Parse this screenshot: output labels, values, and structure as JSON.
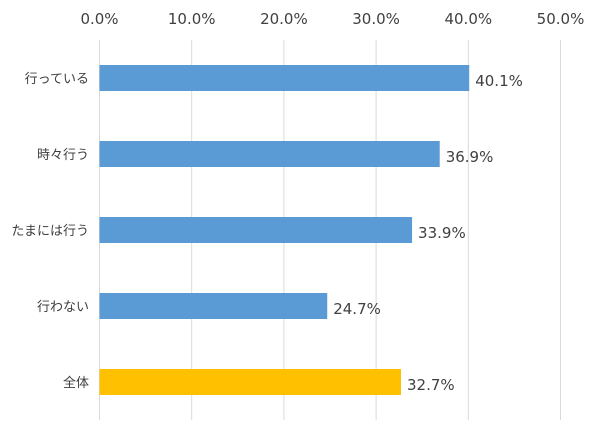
{
  "chart_data": {
    "type": "bar",
    "orientation": "horizontal",
    "categories": [
      "行っている",
      "時々行う",
      "たまには行う",
      "行わない",
      "全体"
    ],
    "values": [
      40.1,
      36.9,
      33.9,
      24.7,
      32.7
    ],
    "value_labels": [
      "40.1%",
      "36.9%",
      "33.9%",
      "24.7%",
      "32.7%"
    ],
    "bar_colors": [
      "#5B9BD5",
      "#5B9BD5",
      "#5B9BD5",
      "#5B9BD5",
      "#FFC000"
    ],
    "xlim": [
      0,
      50
    ],
    "x_ticks": [
      0,
      10,
      20,
      30,
      40,
      50
    ],
    "x_tick_labels": [
      "0.0%",
      "10.0%",
      "20.0%",
      "30.0%",
      "40.0%",
      "50.0%"
    ],
    "x_axis_position": "top",
    "grid": true,
    "title": "",
    "xlabel": "",
    "ylabel": ""
  }
}
